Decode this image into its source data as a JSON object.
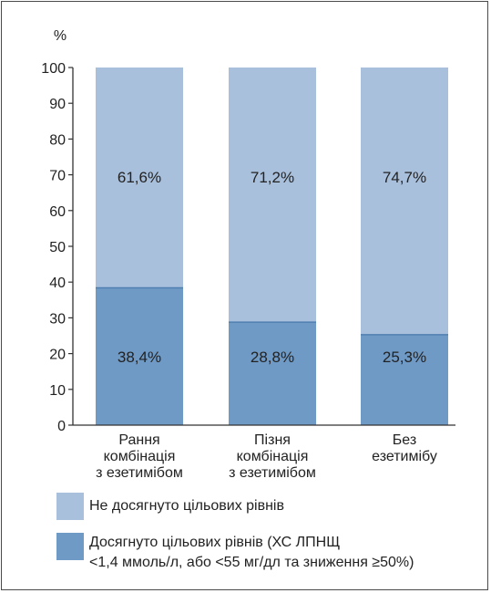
{
  "chart_data": {
    "type": "bar",
    "stacked": true,
    "ylabel": "%",
    "ylim": [
      0,
      100
    ],
    "yticks": [
      0,
      10,
      20,
      30,
      40,
      50,
      60,
      70,
      80,
      90,
      100
    ],
    "grid": false,
    "legend_position": "bottom",
    "categories": [
      [
        "Рання",
        "комбінація",
        "з езетимібом"
      ],
      [
        "Пізня",
        "комбінація",
        "з езетимібом"
      ],
      [
        "Без",
        "езетимібу"
      ]
    ],
    "series": [
      {
        "name": "Досягнуто цільових рівнів (ХС ЛПНЩ <1,4 ммоль/л, або <55 мг/дл та зниження ≥50%)",
        "values": [
          38.4,
          28.8,
          25.3
        ],
        "labels": [
          "38,4%",
          "28,8%",
          "25,3%"
        ],
        "color": "#6f9ac6"
      },
      {
        "name": "Не досягнуто цільових рівнів",
        "values": [
          61.6,
          71.2,
          74.7
        ],
        "labels": [
          "61,6%",
          "71,2%",
          "74,7%"
        ],
        "color": "#a9c0dc"
      }
    ]
  },
  "legend": {
    "items": [
      {
        "lines": [
          "Не досягнуто цільових рівнів"
        ],
        "color": "#a9c0dc"
      },
      {
        "lines": [
          "Досягнуто цільових рівнів (ХС ЛПНЩ",
          "<1,4 ммоль/л, або <55 мг/дл та зниження ≥50%)"
        ],
        "color": "#6f9ac6"
      }
    ]
  },
  "colors": {
    "axis": "#333333",
    "text": "#222222",
    "frame": "#4a4a4a"
  }
}
